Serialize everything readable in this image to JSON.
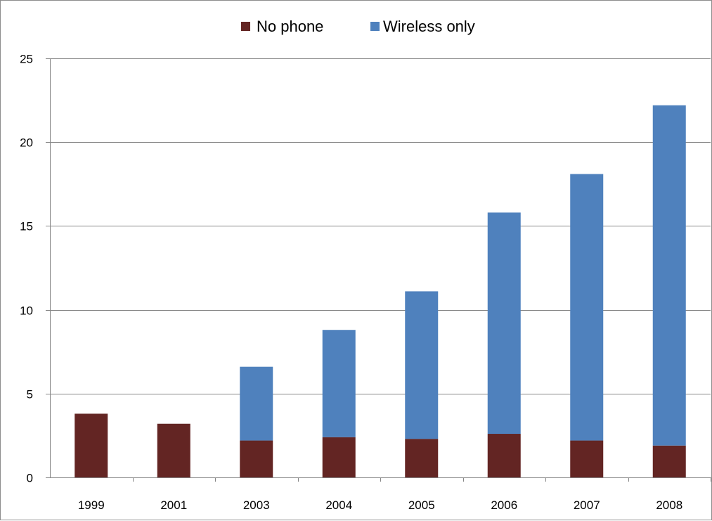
{
  "chart_data": {
    "type": "bar",
    "stacked": true,
    "title": "",
    "xlabel": "",
    "ylabel": "",
    "categories": [
      "1999",
      "2001",
      "2003",
      "2004",
      "2005",
      "2006",
      "2007",
      "2008"
    ],
    "series": [
      {
        "name": "No phone",
        "color": "#632523",
        "values": [
          3.8,
          3.2,
          2.2,
          2.4,
          2.3,
          2.6,
          2.2,
          1.9
        ]
      },
      {
        "name": "Wireless only",
        "color": "#4f81bd",
        "values": [
          0,
          0,
          4.4,
          6.4,
          8.8,
          13.2,
          15.9,
          20.3
        ]
      }
    ],
    "ylim": [
      0,
      25
    ],
    "yticks": [
      "0",
      "5",
      "10",
      "15",
      "20",
      "25"
    ],
    "grid": true,
    "legend_position": "top-center"
  }
}
